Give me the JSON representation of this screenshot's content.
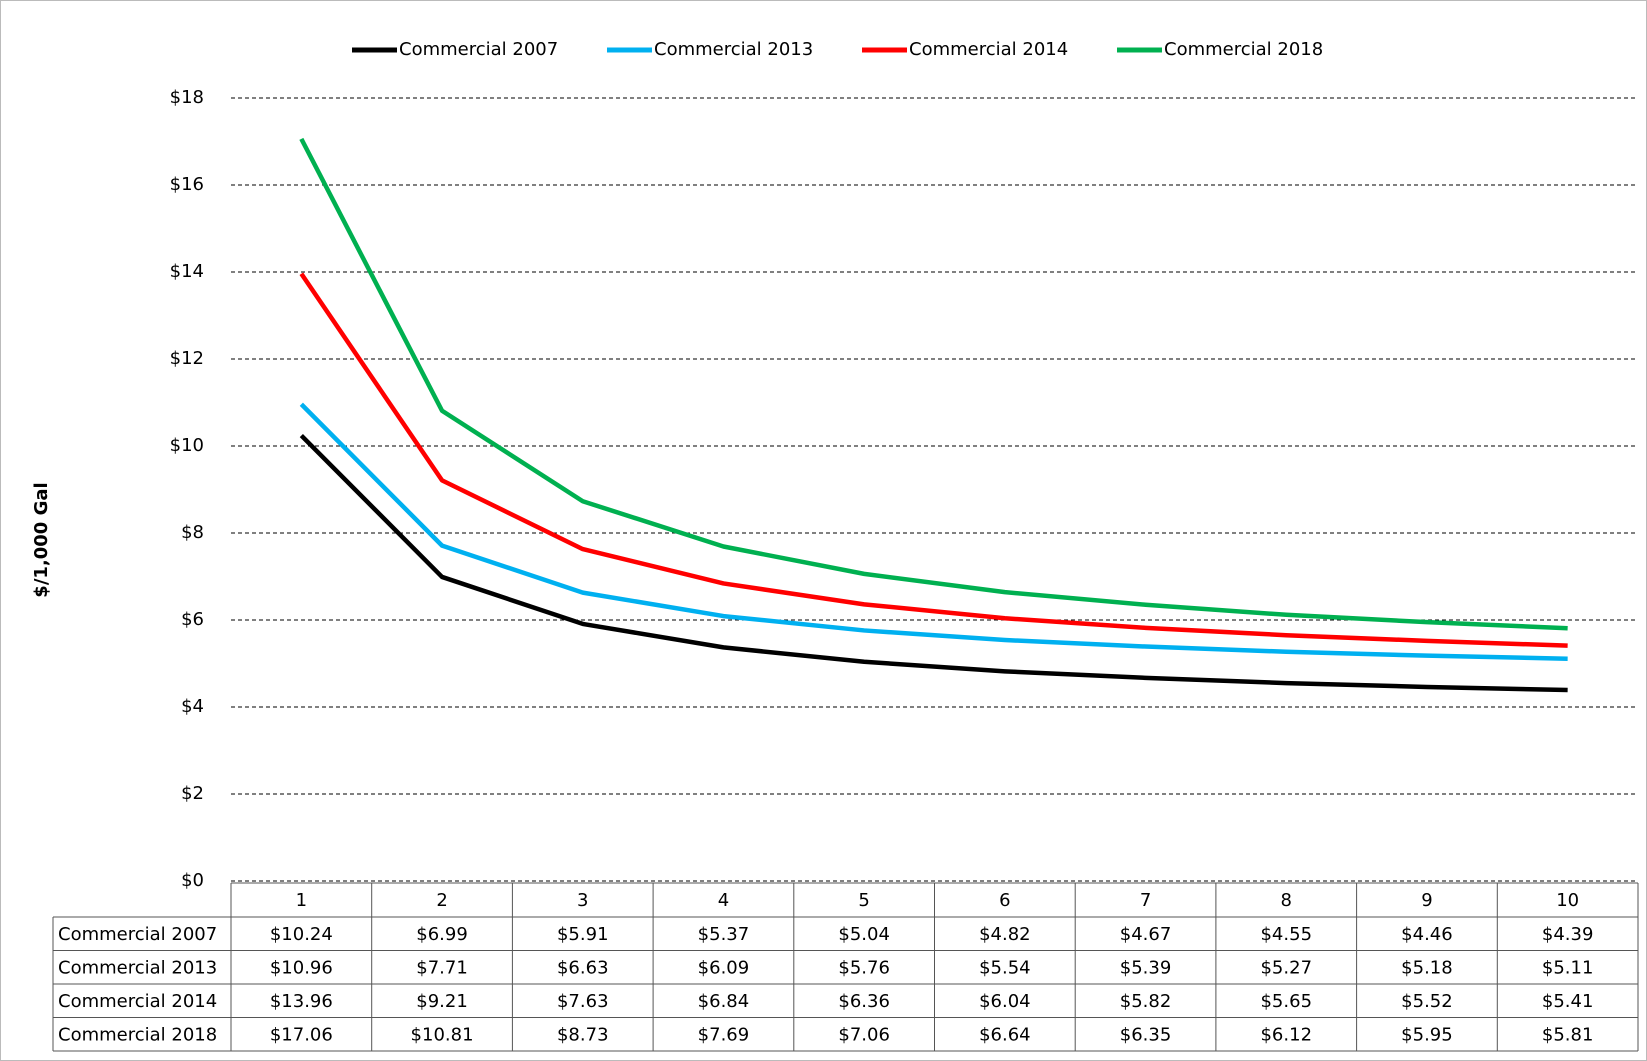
{
  "chart_data": {
    "type": "line",
    "y_label": "$/1,000 Gal",
    "categories": [
      "1",
      "2",
      "3",
      "4",
      "5",
      "6",
      "7",
      "8",
      "9",
      "10"
    ],
    "series": [
      {
        "name": "Commercial 2007",
        "color": "#000000",
        "values": [
          10.24,
          6.99,
          5.91,
          5.37,
          5.04,
          4.82,
          4.67,
          4.55,
          4.46,
          4.39
        ],
        "value_labels": [
          "$10.24",
          "$6.99",
          "$5.91",
          "$5.37",
          "$5.04",
          "$4.82",
          "$4.67",
          "$4.55",
          "$4.46",
          "$4.39"
        ]
      },
      {
        "name": "Commercial 2013",
        "color": "#00b0f0",
        "values": [
          10.96,
          7.71,
          6.63,
          6.09,
          5.76,
          5.54,
          5.39,
          5.27,
          5.18,
          5.11
        ],
        "value_labels": [
          "$10.96",
          "$7.71",
          "$6.63",
          "$6.09",
          "$5.76",
          "$5.54",
          "$5.39",
          "$5.27",
          "$5.18",
          "$5.11"
        ]
      },
      {
        "name": "Commercial 2014",
        "color": "#ff0000",
        "values": [
          13.96,
          9.21,
          7.63,
          6.84,
          6.36,
          6.04,
          5.82,
          5.65,
          5.52,
          5.41
        ],
        "value_labels": [
          "$13.96",
          "$9.21",
          "$7.63",
          "$6.84",
          "$6.36",
          "$6.04",
          "$5.82",
          "$5.65",
          "$5.52",
          "$5.41"
        ]
      },
      {
        "name": "Commercial 2018",
        "color": "#00b050",
        "values": [
          17.06,
          10.81,
          8.73,
          7.69,
          7.06,
          6.64,
          6.35,
          6.12,
          5.95,
          5.81
        ],
        "value_labels": [
          "$17.06",
          "$10.81",
          "$8.73",
          "$7.69",
          "$7.06",
          "$6.64",
          "$6.35",
          "$6.12",
          "$5.95",
          "$5.81"
        ]
      }
    ],
    "ylim": [
      0,
      18
    ],
    "yticks": [
      {
        "value": 0,
        "label": "$0"
      },
      {
        "value": 2,
        "label": "$2"
      },
      {
        "value": 4,
        "label": "$4"
      },
      {
        "value": 6,
        "label": "$6"
      },
      {
        "value": 8,
        "label": "$8"
      },
      {
        "value": 10,
        "label": "$10"
      },
      {
        "value": 12,
        "label": "$12"
      },
      {
        "value": 14,
        "label": "$14"
      },
      {
        "value": 16,
        "label": "$16"
      },
      {
        "value": 18,
        "label": "$18"
      }
    ],
    "grid": true,
    "legend": "top"
  }
}
